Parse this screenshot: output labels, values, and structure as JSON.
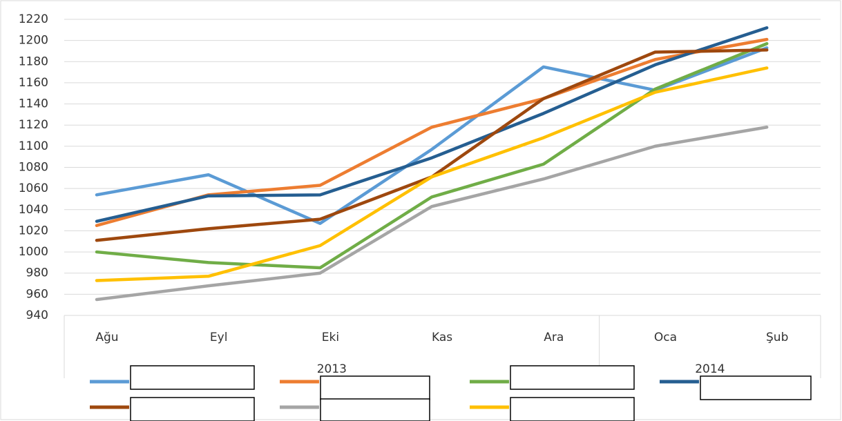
{
  "chart_data": {
    "type": "line",
    "categories": [
      "Ağu",
      "Eyl",
      "Eki",
      "Kas",
      "Ara",
      "Oca",
      "Şub"
    ],
    "category_groups": [
      {
        "label": "2013",
        "start": 0,
        "end": 4
      },
      {
        "label": "2014",
        "start": 5,
        "end": 6
      }
    ],
    "series": [
      {
        "color": "#5b9bd5",
        "values": [
          1054,
          1073,
          1027,
          1097,
          1175,
          1153,
          1193
        ]
      },
      {
        "color": "#ed7d31",
        "values": [
          1025,
          1054,
          1063,
          1118,
          1145,
          1182,
          1201
        ]
      },
      {
        "color": "#70ad47",
        "values": [
          1000,
          990,
          985,
          1052,
          1083,
          1154,
          1197
        ]
      },
      {
        "color": "#255e91",
        "values": [
          1029,
          1053,
          1054,
          1089,
          1131,
          1177,
          1212
        ]
      },
      {
        "color": "#9e480e",
        "values": [
          1011,
          1022,
          1031,
          1071,
          1145,
          1189,
          1191
        ]
      },
      {
        "color": "#a5a5a5",
        "values": [
          955,
          968,
          980,
          1043,
          1069,
          1100,
          1118
        ]
      },
      {
        "color": "#ffc000",
        "values": [
          973,
          977,
          1006,
          1071,
          1108,
          1151,
          1174
        ]
      }
    ],
    "ylim": [
      940,
      1220
    ],
    "yticks": [
      940,
      960,
      980,
      1000,
      1020,
      1040,
      1060,
      1080,
      1100,
      1120,
      1140,
      1160,
      1180,
      1200,
      1220
    ],
    "grid": true
  }
}
